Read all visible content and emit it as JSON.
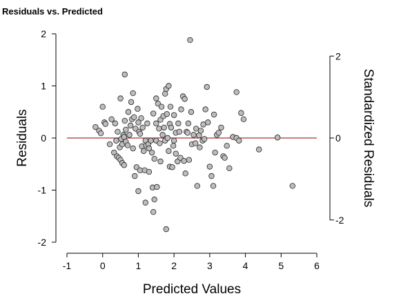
{
  "chart_data": {
    "type": "scatter",
    "title": "Residuals vs. Predicted",
    "xlabel": "Predicted Values",
    "ylabel": "Residuals",
    "y2label": "Standardized Residuals",
    "xlim": [
      -1,
      6
    ],
    "ylim": [
      -2,
      2
    ],
    "y2lim": [
      -2.56,
      2.56
    ],
    "x_ticks": [
      -1,
      0,
      1,
      2,
      3,
      4,
      5,
      6
    ],
    "y_ticks": [
      -2,
      -1,
      0,
      1,
      2
    ],
    "y2_ticks": [
      -2,
      0,
      2
    ],
    "reference_line_y": 0,
    "grid": false,
    "colors": {
      "points_fill": "#bdbdbd",
      "points_stroke": "#222222",
      "reference_line": "#a83232",
      "axis": "#000000"
    },
    "points": [
      [
        -0.2,
        0.21
      ],
      [
        -0.1,
        0.14
      ],
      [
        -0.05,
        0.09
      ],
      [
        0.0,
        0.6
      ],
      [
        0.05,
        0.3
      ],
      [
        0.08,
        0.27
      ],
      [
        0.2,
        -0.12
      ],
      [
        0.25,
        0.36
      ],
      [
        0.32,
        -0.28
      ],
      [
        0.35,
        0.28
      ],
      [
        0.38,
        -0.05
      ],
      [
        0.4,
        -0.35
      ],
      [
        0.42,
        0.12
      ],
      [
        0.45,
        -0.38
      ],
      [
        0.48,
        -0.18
      ],
      [
        0.5,
        0.76
      ],
      [
        0.5,
        -0.42
      ],
      [
        0.52,
        -0.02
      ],
      [
        0.55,
        -0.48
      ],
      [
        0.55,
        -0.12
      ],
      [
        0.58,
        0.06
      ],
      [
        0.6,
        0.02
      ],
      [
        0.6,
        -0.52
      ],
      [
        0.62,
        0.33
      ],
      [
        0.62,
        1.22
      ],
      [
        0.65,
        0.16
      ],
      [
        0.65,
        -0.07
      ],
      [
        0.7,
        -0.14
      ],
      [
        0.72,
        0.5
      ],
      [
        0.75,
        0.06
      ],
      [
        0.78,
        0.24
      ],
      [
        0.8,
        0.69
      ],
      [
        0.82,
        0.36
      ],
      [
        0.85,
        0.86
      ],
      [
        0.85,
        -0.2
      ],
      [
        0.88,
        0.4
      ],
      [
        0.9,
        -0.73
      ],
      [
        0.92,
        0.18
      ],
      [
        0.95,
        -0.56
      ],
      [
        0.98,
        0.56
      ],
      [
        1.0,
        0.3
      ],
      [
        1.0,
        -1.02
      ],
      [
        1.02,
        0.12
      ],
      [
        1.05,
        0.08
      ],
      [
        1.05,
        -0.62
      ],
      [
        1.08,
        0.38
      ],
      [
        1.1,
        -0.16
      ],
      [
        1.12,
        0.2
      ],
      [
        1.15,
        -0.25
      ],
      [
        1.18,
        -0.62
      ],
      [
        1.2,
        -1.24
      ],
      [
        1.2,
        -0.05
      ],
      [
        1.22,
        -0.14
      ],
      [
        1.25,
        0.28
      ],
      [
        1.28,
        -0.12
      ],
      [
        1.3,
        -0.2
      ],
      [
        1.3,
        -0.65
      ],
      [
        1.35,
        -0.05
      ],
      [
        1.38,
        -0.28
      ],
      [
        1.4,
        -0.95
      ],
      [
        1.42,
        0.47
      ],
      [
        1.42,
        -1.42
      ],
      [
        1.45,
        -1.18
      ],
      [
        1.45,
        -0.4
      ],
      [
        1.5,
        0.76
      ],
      [
        1.5,
        0.28
      ],
      [
        1.5,
        -0.05
      ],
      [
        1.52,
        -0.94
      ],
      [
        1.55,
        0.66
      ],
      [
        1.58,
        0.18
      ],
      [
        1.6,
        -0.1
      ],
      [
        1.62,
        0.35
      ],
      [
        1.62,
        -0.45
      ],
      [
        1.65,
        0.6
      ],
      [
        1.68,
        0.06
      ],
      [
        1.7,
        0.42
      ],
      [
        1.72,
        0.2
      ],
      [
        1.75,
        0.85
      ],
      [
        1.75,
        -0.05
      ],
      [
        1.78,
        -1.75
      ],
      [
        1.78,
        0.94
      ],
      [
        1.8,
        0.46
      ],
      [
        1.82,
        0.0
      ],
      [
        1.85,
        1.0
      ],
      [
        1.85,
        -0.25
      ],
      [
        1.88,
        0.27
      ],
      [
        1.88,
        -0.55
      ],
      [
        1.9,
        0.6
      ],
      [
        1.92,
        0.2
      ],
      [
        1.95,
        -0.56
      ],
      [
        1.98,
        -0.15
      ],
      [
        2.0,
        0.44
      ],
      [
        2.0,
        -0.05
      ],
      [
        2.05,
        0.1
      ],
      [
        2.05,
        -0.3
      ],
      [
        2.1,
        -0.45
      ],
      [
        2.12,
        0.28
      ],
      [
        2.15,
        0.12
      ],
      [
        2.18,
        -0.38
      ],
      [
        2.2,
        0.55
      ],
      [
        2.25,
        0.8
      ],
      [
        2.28,
        -0.44
      ],
      [
        2.3,
        0.75
      ],
      [
        2.32,
        -0.68
      ],
      [
        2.35,
        0.12
      ],
      [
        2.38,
        0.1
      ],
      [
        2.4,
        0.28
      ],
      [
        2.42,
        -0.42
      ],
      [
        2.45,
        1.88
      ],
      [
        2.48,
        0.5
      ],
      [
        2.5,
        -0.12
      ],
      [
        2.55,
        0.06
      ],
      [
        2.6,
        -0.1
      ],
      [
        2.62,
        0.18
      ],
      [
        2.65,
        -0.92
      ],
      [
        2.7,
        0.05
      ],
      [
        2.72,
        -0.18
      ],
      [
        2.75,
        0.14
      ],
      [
        2.8,
        -0.05
      ],
      [
        2.82,
        0.26
      ],
      [
        2.85,
        -0.02
      ],
      [
        2.88,
        0.55
      ],
      [
        2.92,
        0.98
      ],
      [
        2.95,
        0.3
      ],
      [
        3.0,
        -0.55
      ],
      [
        3.05,
        -0.73
      ],
      [
        3.1,
        -0.92
      ],
      [
        3.12,
        0.45
      ],
      [
        3.15,
        -0.28
      ],
      [
        3.2,
        0.06
      ],
      [
        3.25,
        0.1
      ],
      [
        3.32,
        0.2
      ],
      [
        3.38,
        -0.35
      ],
      [
        3.42,
        -0.38
      ],
      [
        3.48,
        -0.15
      ],
      [
        3.55,
        -0.58
      ],
      [
        3.65,
        0.02
      ],
      [
        3.75,
        0.88
      ],
      [
        3.75,
        0.0
      ],
      [
        3.82,
        -0.05
      ],
      [
        3.88,
        0.48
      ],
      [
        3.95,
        0.36
      ],
      [
        4.38,
        -0.22
      ],
      [
        4.9,
        0.01
      ],
      [
        5.32,
        -0.92
      ]
    ]
  }
}
